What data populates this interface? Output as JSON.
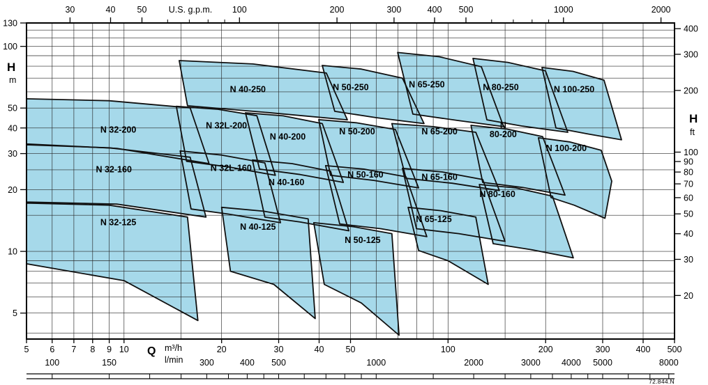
{
  "page": {
    "watermark": "72.844.N"
  },
  "chart_data": {
    "type": "area",
    "title": "",
    "description": "Log-log pump family selection chart: shaded operating envelopes per pump model (head H vs flow Q).",
    "xlim_m3h": [
      5,
      500
    ],
    "ylim_m": [
      3.736,
      130
    ],
    "x_axis": {
      "label": "Q",
      "unit_primary": "m³/h",
      "unit_secondary": "l/min",
      "scale": "log",
      "min_m3h": 5,
      "max_m3h": 500,
      "ticks_m3h": [
        5,
        6,
        7,
        8,
        9,
        10,
        20,
        30,
        40,
        50,
        100,
        200,
        300,
        400,
        500
      ],
      "ticks_lmin": [
        100,
        150,
        300,
        400,
        500,
        1000,
        2000,
        3000,
        4000,
        5000,
        8000
      ],
      "lmin_per_m3h": 16.6667,
      "grid_m3h": [
        5,
        6,
        7,
        8,
        9,
        10,
        15,
        20,
        30,
        40,
        50,
        60,
        70,
        80,
        90,
        100,
        150,
        200,
        300,
        400,
        500
      ],
      "bottom_ruler_ticks_lmin": [
        100,
        150,
        200,
        250,
        300,
        350,
        400,
        450,
        500,
        600,
        700,
        800,
        900,
        1000,
        1500,
        2000,
        2500,
        3000,
        3500,
        4000,
        4500,
        5000,
        6000,
        7000,
        8000
      ]
    },
    "top_axis": {
      "label": "U.S. g.p.m.",
      "gpm_per_m3h": 4.40287,
      "ticks_gpm": [
        30,
        40,
        50,
        100,
        200,
        300,
        400,
        500,
        1000,
        2000
      ],
      "minor_ticks_gpm": [
        60,
        70,
        80,
        90,
        600,
        700,
        800,
        900
      ]
    },
    "y_axis": {
      "label": "H",
      "unit": "m",
      "scale": "log",
      "min_m": 3.736,
      "max_m": 130,
      "ticks_m": [
        130,
        100,
        50,
        40,
        30,
        20,
        10,
        5
      ],
      "grid_m": [
        4,
        5,
        6,
        7,
        8,
        9,
        10,
        15,
        20,
        25,
        30,
        40,
        50,
        60,
        70,
        80,
        90,
        100,
        110,
        120,
        130
      ]
    },
    "right_axis": {
      "label": "H",
      "unit": "ft",
      "ft_per_m": 3.2808,
      "ticks_ft": [
        400,
        300,
        200,
        100,
        90,
        80,
        70,
        60,
        50,
        40,
        30,
        20
      ]
    },
    "style": {
      "fill": "#a6d9ea",
      "outline": "#101010",
      "grid": "#262626",
      "frame": "#000000",
      "label_color": "#000000",
      "background": "#ffffff"
    },
    "regions": [
      {
        "name": "N 32-125",
        "label": "N 32-125",
        "label_at": [
          9.6,
          13.9
        ],
        "points": [
          [
            5,
            8.7
          ],
          [
            5,
            17.2
          ],
          [
            9,
            16.8
          ],
          [
            15.7,
            14.7
          ],
          [
            16.9,
            4.6
          ],
          [
            10,
            7.2
          ]
        ]
      },
      {
        "name": "N 40-125",
        "label": "N 40-125",
        "label_at": [
          25.9,
          13.2
        ],
        "points": [
          [
            21.3,
            8.0
          ],
          [
            20,
            16.4
          ],
          [
            27,
            15.7
          ],
          [
            37,
            14.4
          ],
          [
            38.9,
            4.7
          ],
          [
            29,
            6.9
          ]
        ]
      },
      {
        "name": "N 50-125",
        "label": "N 50-125",
        "label_at": [
          54.5,
          11.4
        ],
        "points": [
          [
            41.5,
            6.9
          ],
          [
            38.5,
            13.8
          ],
          [
            51,
            13.2
          ],
          [
            67.1,
            12.2
          ],
          [
            70.6,
            3.9
          ],
          [
            54,
            5.6
          ]
        ]
      },
      {
        "name": "N 65-125",
        "label": "N 65-125",
        "label_at": [
          90.4,
          14.4
        ],
        "points": [
          [
            81.1,
            10.1
          ],
          [
            75.3,
            16.4
          ],
          [
            95,
            15.8
          ],
          [
            121.8,
            14.7
          ],
          [
            133,
            6.9
          ],
          [
            100,
            9.0
          ]
        ]
      },
      {
        "name": "N 32-160",
        "label": "N 32-160",
        "label_at": [
          9.3,
          25.2
        ],
        "points": [
          [
            5,
            17.4
          ],
          [
            5,
            33.1
          ],
          [
            9,
            32
          ],
          [
            16,
            28.8
          ],
          [
            17.9,
            14.7
          ],
          [
            9.5,
            17.0
          ]
        ]
      },
      {
        "name": "N 32L-160",
        "label": "N 32L-160",
        "label_at": [
          21.4,
          25.6
        ],
        "points": [
          [
            16.1,
            16.1
          ],
          [
            14.9,
            30.9
          ],
          [
            20,
            29.5
          ],
          [
            27.2,
            27.0
          ],
          [
            30.4,
            13.8
          ],
          [
            21,
            15.2
          ]
        ]
      },
      {
        "name": "N 40-160",
        "label": "N 40-160",
        "label_at": [
          31.7,
          21.8
        ],
        "points": [
          [
            27.2,
            14.7
          ],
          [
            24.9,
            27.9
          ],
          [
            33,
            26.8
          ],
          [
            43.4,
            24.6
          ],
          [
            49.4,
            12.6
          ],
          [
            35,
            13.9
          ]
        ]
      },
      {
        "name": "N 50-160",
        "label": "N 50-160",
        "label_at": [
          55.6,
          23.7
        ],
        "points": [
          [
            46.3,
            13.6
          ],
          [
            41.9,
            26.2
          ],
          [
            55,
            25.2
          ],
          [
            74.2,
            23.1
          ],
          [
            86,
            11.8
          ],
          [
            62,
            12.9
          ]
        ]
      },
      {
        "name": "N 65-160",
        "label": "N 65-160",
        "label_at": [
          94.1,
          23.1
        ],
        "points": [
          [
            79.9,
            12.9
          ],
          [
            72.3,
            25.4
          ],
          [
            96,
            24.4
          ],
          [
            128,
            22.4
          ],
          [
            149.9,
            11.2
          ],
          [
            108,
            12.2
          ]
        ]
      },
      {
        "name": "N 80-160",
        "label": "N 80-160",
        "label_at": [
          142,
          19.1
        ],
        "points": [
          [
            137.8,
            10.9
          ],
          [
            124.9,
            21.2
          ],
          [
            162,
            20.4
          ],
          [
            210,
            18.6
          ],
          [
            243.6,
            9.3
          ],
          [
            180,
            10.2
          ]
        ]
      },
      {
        "name": "N 32-200",
        "label": "N 32-200",
        "label_at": [
          9.6,
          39.3
        ],
        "points": [
          [
            5,
            33.4
          ],
          [
            5,
            55.5
          ],
          [
            9,
            54.3
          ],
          [
            16,
            50.1
          ],
          [
            18.3,
            26.8
          ],
          [
            9.5,
            31.8
          ]
        ]
      },
      {
        "name": "N 32L-200",
        "label": "N 32L-200",
        "label_at": [
          20.7,
          41.2
        ],
        "points": [
          [
            15.6,
            27.5
          ],
          [
            14.5,
            51.0
          ],
          [
            19.5,
            49.3
          ],
          [
            25.7,
            45.9
          ],
          [
            29.3,
            23.5
          ],
          [
            21,
            25.8
          ]
        ]
      },
      {
        "name": "N 40-200",
        "label": "N 40-200",
        "label_at": [
          32,
          36.3
        ],
        "points": [
          [
            26.2,
            25.2
          ],
          [
            23.7,
            47.4
          ],
          [
            31,
            45.8
          ],
          [
            40.9,
            42.0
          ],
          [
            47.5,
            21.7
          ],
          [
            35,
            23.7
          ]
        ]
      },
      {
        "name": "N 50-200",
        "label": "N 50-200",
        "label_at": [
          52.4,
          38.6
        ],
        "points": [
          [
            43.4,
            23.5
          ],
          [
            39.9,
            43.9
          ],
          [
            52,
            42.4
          ],
          [
            68.8,
            39.3
          ],
          [
            81.1,
            20.4
          ],
          [
            59,
            22.2
          ]
        ]
      },
      {
        "name": "N 65-200",
        "label": "N 65-200",
        "label_at": [
          94.1,
          38.6
        ],
        "points": [
          [
            74.2,
            22.7
          ],
          [
            67.1,
            42.0
          ],
          [
            90,
            40.6
          ],
          [
            121.8,
            38.1
          ],
          [
            144,
            19.8
          ],
          [
            103,
            21.5
          ]
        ]
      },
      {
        "name": "N 80-200",
        "label": "N 80-200",
        "label_lines": [
          "N",
          "80-200"
        ],
        "label_at": [
          148,
          39.3
        ],
        "points": [
          [
            127.9,
            21.7
          ],
          [
            117.7,
            41.2
          ],
          [
            152,
            39.5
          ],
          [
            195.8,
            36.3
          ],
          [
            229.6,
            18.8
          ],
          [
            170,
            20.5
          ]
        ]
      },
      {
        "name": "N 100-200",
        "label": "N 100-200",
        "label_at": [
          231.8,
          31.9
        ],
        "points": [
          [
            207.9,
            18.3
          ],
          [
            190.1,
            35.8
          ],
          [
            237,
            34.2
          ],
          [
            297,
            31.1
          ],
          [
            320,
            22
          ],
          [
            305,
            14.5
          ],
          [
            245,
            16.8
          ]
        ]
      },
      {
        "name": "N 40-250",
        "label": "N 40-250",
        "label_at": [
          24.1,
          61.9
        ],
        "points": [
          [
            15.7,
            51.3
          ],
          [
            14.8,
            85.2
          ],
          [
            25,
            82
          ],
          [
            42.1,
            74.1
          ],
          [
            48.9,
            43.8
          ],
          [
            28,
            47.5
          ]
        ]
      },
      {
        "name": "N 50-250",
        "label": "N 50-250",
        "label_at": [
          50.1,
          63.3
        ],
        "points": [
          [
            44.7,
            48.2
          ],
          [
            40.9,
            80.7
          ],
          [
            54,
            77.5
          ],
          [
            72.3,
            70.0
          ],
          [
            84.3,
            42.0
          ],
          [
            60,
            44.9
          ]
        ]
      },
      {
        "name": "N 65-250",
        "label": "N 65-250",
        "label_at": [
          86,
          65.3
        ],
        "points": [
          [
            77.9,
            46.7
          ],
          [
            69.9,
            93.3
          ],
          [
            94,
            89
          ],
          [
            126.7,
            79.5
          ],
          [
            148.4,
            40.6
          ],
          [
            107,
            43.5
          ]
        ]
      },
      {
        "name": "N 80-250",
        "label": "N 80-250",
        "label_at": [
          145.5,
          63.3
        ],
        "points": [
          [
            131.8,
            43.8
          ],
          [
            119.4,
            87.3
          ],
          [
            153,
            83.5
          ],
          [
            199.8,
            75.9
          ],
          [
            234.2,
            38.1
          ],
          [
            170,
            40.8
          ]
        ]
      },
      {
        "name": "N 100-250",
        "label": "N 100-250",
        "label_at": [
          244.9,
          61.9
        ],
        "points": [
          [
            215.3,
            40.0
          ],
          [
            195,
            78.9
          ],
          [
            243,
            75.5
          ],
          [
            302.9,
            68.4
          ],
          [
            343.1,
            35.0
          ],
          [
            270,
            37.4
          ]
        ]
      }
    ]
  }
}
